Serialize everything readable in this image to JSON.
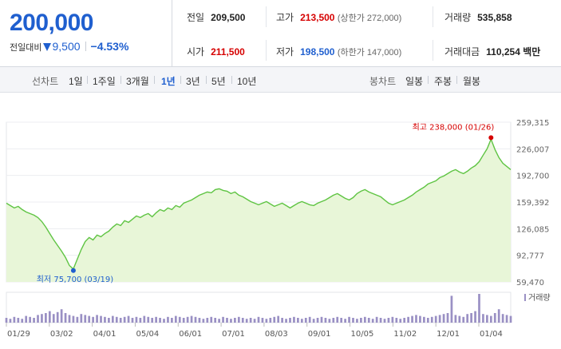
{
  "summary": {
    "price": "200,000",
    "change_label": "전일대비",
    "change_value": "9,500",
    "change_pct": "−4.53%",
    "prev_close": {
      "label": "전일",
      "value": "209,500"
    },
    "high": {
      "label": "고가",
      "value": "213,500",
      "sub": "(상한가 272,000)"
    },
    "volume": {
      "label": "거래량",
      "value": "535,858"
    },
    "open": {
      "label": "시가",
      "value": "211,500"
    },
    "low": {
      "label": "저가",
      "value": "198,500",
      "sub": "(하한가 147,000)"
    },
    "amount": {
      "label": "거래대금",
      "value": "110,254 백만"
    }
  },
  "toolbar": {
    "line_label": "선차트",
    "periods": [
      "1일",
      "1주일",
      "3개월",
      "1년",
      "3년",
      "5년",
      "10년"
    ],
    "active_period": "1년",
    "candle_label": "봉차트",
    "candles": [
      "일봉",
      "주봉",
      "월봉"
    ]
  },
  "colors": {
    "up": "#d60000",
    "down": "#1f5fcf",
    "line": "#5fc443",
    "fill": "#e8f6d8"
  },
  "chart_data": {
    "type": "area",
    "x_ticks": [
      "01/29",
      "03/02",
      "04/01",
      "05/04",
      "06/01",
      "07/01",
      "08/03",
      "09/01",
      "10/05",
      "11/02",
      "12/01",
      "01/04"
    ],
    "y_ticks": [
      "259,315",
      "226,007",
      "192,700",
      "159,392",
      "126,085",
      "92,777",
      "59,470"
    ],
    "ylim": [
      59470,
      259315
    ],
    "max_annotation": "최고 238,000 (01/26)",
    "min_annotation": "최저 75,700 (03/19)",
    "max_value": 238000,
    "min_value": 75700,
    "volume_label": "거래량",
    "series": [
      {
        "values": [
          158000,
          155000,
          152000,
          154000,
          150000,
          147000,
          145000,
          143000,
          140000,
          135000,
          128000,
          120000,
          112000,
          105000,
          98000,
          90000,
          80000,
          75700,
          88000,
          100000,
          110000,
          115000,
          112000,
          118000,
          116000,
          120000,
          123000,
          128000,
          132000,
          130000,
          136000,
          134000,
          138000,
          142000,
          140000,
          143000,
          145000,
          141000,
          146000,
          150000,
          148000,
          152000,
          150000,
          155000,
          153000,
          158000,
          160000,
          162000,
          165000,
          168000,
          170000,
          172000,
          171000,
          175000,
          176000,
          174000,
          173000,
          170000,
          172000,
          168000,
          166000,
          163000,
          160000,
          158000,
          156000,
          158000,
          160000,
          157000,
          154000,
          156000,
          158000,
          155000,
          152000,
          155000,
          158000,
          160000,
          158000,
          156000,
          155000,
          158000,
          160000,
          162000,
          165000,
          168000,
          170000,
          167000,
          164000,
          162000,
          165000,
          170000,
          173000,
          175000,
          172000,
          170000,
          168000,
          166000,
          162000,
          158000,
          156000,
          158000,
          160000,
          162000,
          165000,
          168000,
          172000,
          175000,
          178000,
          182000,
          184000,
          186000,
          190000,
          192000,
          195000,
          198000,
          200000,
          197000,
          195000,
          198000,
          202000,
          205000,
          210000,
          218000,
          226000,
          238000,
          225000,
          215000,
          208000,
          204000,
          200000
        ]
      }
    ],
    "volume": [
      5,
      4,
      6,
      5,
      4,
      7,
      6,
      5,
      8,
      9,
      10,
      12,
      9,
      11,
      14,
      10,
      8,
      7,
      6,
      9,
      8,
      7,
      6,
      8,
      7,
      6,
      5,
      7,
      6,
      5,
      6,
      7,
      5,
      6,
      5,
      7,
      6,
      5,
      6,
      5,
      4,
      6,
      5,
      7,
      6,
      5,
      6,
      7,
      6,
      5,
      4,
      5,
      6,
      5,
      4,
      6,
      5,
      4,
      5,
      6,
      5,
      4,
      5,
      4,
      6,
      5,
      4,
      5,
      6,
      7,
      5,
      4,
      5,
      6,
      5,
      4,
      5,
      6,
      4,
      5,
      6,
      5,
      4,
      5,
      6,
      5,
      4,
      6,
      5,
      4,
      5,
      6,
      5,
      4,
      6,
      5,
      4,
      5,
      6,
      5,
      4,
      5,
      6,
      7,
      8,
      7,
      6,
      5,
      6,
      7,
      8,
      9,
      10,
      28,
      8,
      7,
      6,
      9,
      10,
      12,
      30,
      9,
      8,
      7,
      10,
      14,
      9,
      8,
      7
    ]
  }
}
